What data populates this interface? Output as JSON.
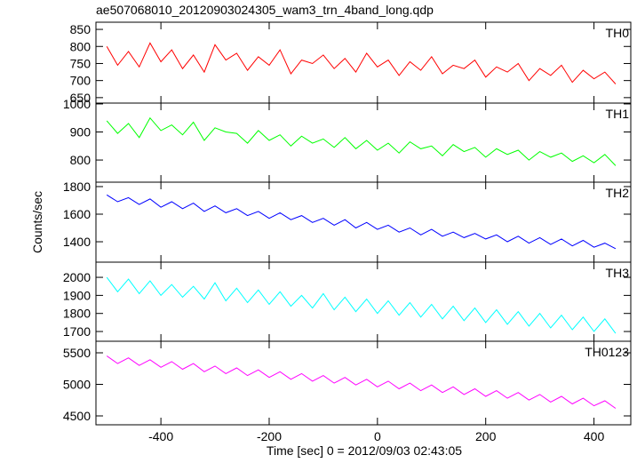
{
  "chart_data": {
    "type": "line",
    "title": "ae507068010_20120903024305_wam3_trn_4band_long.qdp",
    "xlabel": "Time [sec] 0 = 2012/09/03 02:43:05",
    "ylabel": "Counts/sec",
    "xlim": [
      -520,
      468
    ],
    "xticks": [
      -400,
      -200,
      0,
      200,
      400
    ],
    "x": [
      -500,
      -480,
      -460,
      -440,
      -420,
      -400,
      -380,
      -360,
      -340,
      -320,
      -300,
      -280,
      -260,
      -240,
      -220,
      -200,
      -180,
      -160,
      -140,
      -120,
      -100,
      -80,
      -60,
      -40,
      -20,
      0,
      20,
      40,
      60,
      80,
      100,
      120,
      140,
      160,
      180,
      200,
      220,
      240,
      260,
      280,
      300,
      320,
      340,
      360,
      380,
      400,
      420,
      440
    ],
    "series": [
      {
        "name": "TH0",
        "color": "#ff0000",
        "ylim": [
          634,
          871
        ],
        "yticks": [
          650,
          700,
          750,
          800,
          850
        ],
        "values": [
          800,
          745,
          785,
          740,
          810,
          755,
          790,
          735,
          775,
          725,
          805,
          760,
          780,
          730,
          770,
          745,
          790,
          720,
          760,
          750,
          775,
          735,
          765,
          725,
          780,
          740,
          760,
          715,
          755,
          730,
          770,
          720,
          745,
          735,
          760,
          710,
          740,
          725,
          750,
          700,
          735,
          715,
          745,
          695,
          730,
          705,
          725,
          690
        ]
      },
      {
        "name": "TH1",
        "color": "#00ff00",
        "ylim": [
          721,
          1003
        ],
        "yticks": [
          800,
          900,
          1000
        ],
        "values": [
          940,
          895,
          930,
          880,
          950,
          905,
          925,
          890,
          935,
          870,
          915,
          900,
          895,
          860,
          905,
          870,
          890,
          850,
          885,
          860,
          875,
          845,
          880,
          840,
          870,
          835,
          860,
          825,
          865,
          840,
          850,
          815,
          855,
          830,
          845,
          810,
          840,
          820,
          835,
          800,
          830,
          810,
          825,
          795,
          815,
          790,
          820,
          780
        ]
      },
      {
        "name": "TH2",
        "color": "#0000ff",
        "ylim": [
          1252,
          1832
        ],
        "yticks": [
          1400,
          1600,
          1800
        ],
        "values": [
          1740,
          1690,
          1720,
          1670,
          1710,
          1650,
          1690,
          1640,
          1680,
          1620,
          1660,
          1610,
          1640,
          1590,
          1620,
          1570,
          1610,
          1560,
          1590,
          1540,
          1570,
          1520,
          1560,
          1500,
          1540,
          1490,
          1520,
          1470,
          1500,
          1450,
          1490,
          1440,
          1470,
          1430,
          1460,
          1420,
          1450,
          1400,
          1440,
          1390,
          1430,
          1380,
          1420,
          1370,
          1410,
          1360,
          1390,
          1350
        ]
      },
      {
        "name": "TH3",
        "color": "#00ffff",
        "ylim": [
          1646,
          2084
        ],
        "yticks": [
          1700,
          1800,
          1900,
          2000
        ],
        "values": [
          2000,
          1920,
          1990,
          1910,
          1980,
          1900,
          1960,
          1890,
          1950,
          1880,
          1970,
          1870,
          1940,
          1860,
          1930,
          1850,
          1920,
          1840,
          1900,
          1830,
          1910,
          1820,
          1890,
          1810,
          1880,
          1800,
          1870,
          1790,
          1860,
          1780,
          1850,
          1770,
          1840,
          1760,
          1830,
          1750,
          1820,
          1740,
          1810,
          1730,
          1800,
          1720,
          1790,
          1710,
          1780,
          1700,
          1770,
          1690
        ]
      },
      {
        "name": "TH0123",
        "color": "#ff00ff",
        "ylim": [
          4359,
          5683
        ],
        "yticks": [
          4500,
          5000,
          5500
        ],
        "values": [
          5450,
          5330,
          5420,
          5300,
          5390,
          5270,
          5360,
          5240,
          5330,
          5200,
          5290,
          5170,
          5260,
          5140,
          5230,
          5110,
          5200,
          5080,
          5170,
          5050,
          5140,
          5020,
          5110,
          4990,
          5080,
          4960,
          5050,
          4930,
          5020,
          4900,
          4990,
          4870,
          4960,
          4840,
          4930,
          4810,
          4900,
          4780,
          4870,
          4750,
          4840,
          4720,
          4810,
          4690,
          4780,
          4660,
          4740,
          4620
        ]
      }
    ]
  }
}
